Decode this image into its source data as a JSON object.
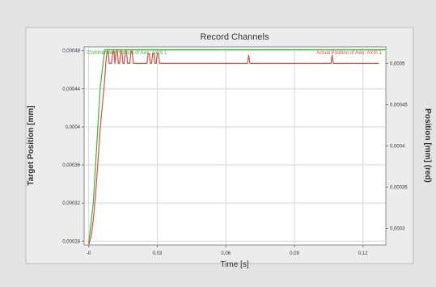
{
  "chart_data": {
    "type": "line",
    "title": "Record Channels",
    "xlabel": "Time [s]",
    "ylabel_left": "Target Position [mm]",
    "ylabel_right": "Position [mm] (red)",
    "x_ticks": [
      "-0",
      "0,03",
      "0,06",
      "0,09",
      "0,12"
    ],
    "x_tick_values": [
      0,
      0.03,
      0.06,
      0.09,
      0.12
    ],
    "xlim": [
      -0.002,
      0.13
    ],
    "y_left_ticks": [
      "0,00048",
      "0,00044",
      "0,0004",
      "0,00036",
      "0,00032",
      "0,00028"
    ],
    "y_left_tick_values": [
      0.00048,
      0.00044,
      0.0004,
      0.00036,
      0.00032,
      0.00028
    ],
    "ylim_left": [
      0.000276,
      0.000484
    ],
    "y_right_ticks": [
      "0,0005",
      "0,00045",
      "0,0004",
      "0,00035",
      "0,0003"
    ],
    "y_right_tick_values": [
      0.0005,
      0.00045,
      0.0004,
      0.00035,
      0.0003
    ],
    "ylim_right": [
      0.00028,
      0.00052
    ],
    "grid": true,
    "legend": "inside-top",
    "series": [
      {
        "name": "Commanded Position of Axis: AXIS 1",
        "color": "#3fb23f",
        "axis": "left",
        "legend_position": "top-left",
        "x": [
          0,
          0.002,
          0.005,
          0.007,
          0.13
        ],
        "y": [
          0.000278,
          0.00032,
          0.00044,
          0.000481,
          0.000481
        ]
      },
      {
        "name": "Actual Position of Axis: AXIS 1",
        "color": "#d94f45",
        "axis": "right",
        "legend_position": "top-right",
        "x": [
          0,
          0.001,
          0.002,
          0.003,
          0.004,
          0.005,
          0.006,
          0.007,
          0.0075,
          0.008,
          0.0085,
          0.009,
          0.01,
          0.0105,
          0.011,
          0.0115,
          0.012,
          0.0125,
          0.013,
          0.0135,
          0.014,
          0.0145,
          0.015,
          0.0155,
          0.016,
          0.0165,
          0.017,
          0.0175,
          0.018,
          0.0185,
          0.019,
          0.0195,
          0.02,
          0.025,
          0.0255,
          0.026,
          0.0265,
          0.027,
          0.0275,
          0.028,
          0.0285,
          0.029,
          0.0295,
          0.03,
          0.0305,
          0.031,
          0.0315,
          0.032,
          0.05,
          0.0695,
          0.07,
          0.0705,
          0.106,
          0.1065,
          0.107,
          0.127
        ],
        "y": [
          0.00028,
          0.00029,
          0.00031,
          0.00034,
          0.00038,
          0.00042,
          0.00045,
          0.00048,
          0.0005,
          0.000515,
          0.000515,
          0.0005,
          0.0005,
          0.000515,
          0.000515,
          0.0005,
          0.000515,
          0.000515,
          0.0005,
          0.0005,
          0.000515,
          0.000515,
          0.0005,
          0.0005,
          0.000515,
          0.000515,
          0.0005,
          0.0005,
          0.0005,
          0.000515,
          0.000515,
          0.0005,
          0.0005,
          0.0005,
          0.0005,
          0.000512,
          0.000512,
          0.0005,
          0.0005,
          0.000512,
          0.000512,
          0.0005,
          0.0005,
          0.000512,
          0.000512,
          0.0005,
          0.0005,
          0.0005,
          0.0005,
          0.0005,
          0.00051,
          0.0005,
          0.0005,
          0.00051,
          0.0005,
          0.0005
        ]
      }
    ]
  }
}
